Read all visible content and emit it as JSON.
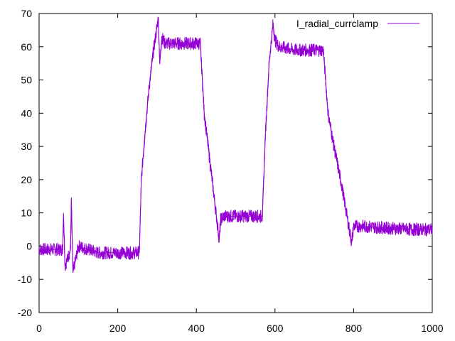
{
  "chart_data": {
    "type": "line",
    "title": "",
    "xlabel": "",
    "ylabel": "",
    "xlim": [
      0,
      1000
    ],
    "ylim": [
      -20,
      70
    ],
    "x_ticks": [
      0,
      200,
      400,
      600,
      800,
      1000
    ],
    "y_ticks": [
      -20,
      -10,
      0,
      10,
      20,
      30,
      40,
      50,
      60,
      70
    ],
    "x_tick_labels": [
      "0",
      "200",
      "400",
      "600",
      "800",
      "1000"
    ],
    "y_tick_labels": [
      "-20",
      "-10",
      "0",
      "10",
      "20",
      "30",
      "40",
      "50",
      "60",
      "70"
    ],
    "grid": false,
    "legend": {
      "position": "top-right"
    },
    "series": [
      {
        "name": "I_radial_currclamp",
        "color": "#9400d3",
        "x": [
          0,
          60,
          62,
          66,
          80,
          82,
          86,
          100,
          150,
          200,
          255,
          260,
          270,
          280,
          290,
          300,
          303,
          307,
          312,
          320,
          350,
          380,
          410,
          420,
          440,
          458,
          462,
          470,
          500,
          560,
          568,
          575,
          585,
          595,
          600,
          605,
          610,
          650,
          700,
          723,
          735,
          750,
          770,
          795,
          800,
          820,
          880,
          950,
          1000
        ],
        "y": [
          -1,
          -1,
          10,
          -6,
          -1,
          14,
          -8,
          0,
          -2,
          -2,
          -2,
          20,
          35,
          48,
          58,
          66,
          69,
          55,
          63,
          61,
          61,
          61,
          61,
          40,
          20,
          2,
          8,
          9,
          9,
          9,
          9,
          32,
          55,
          67,
          62,
          61,
          60,
          59,
          59,
          59,
          40,
          30,
          18,
          1,
          6,
          6,
          5.5,
          5,
          5
        ]
      }
    ]
  }
}
